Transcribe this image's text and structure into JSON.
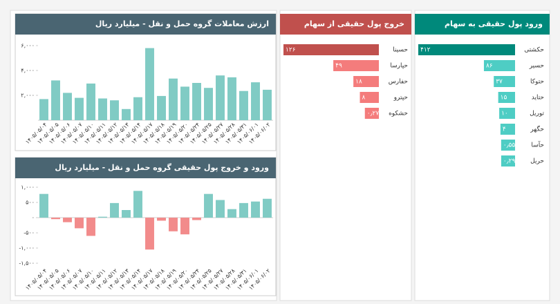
{
  "chart_data": [
    {
      "type": "hbar",
      "title": "ورود پول حقیقی به سهام",
      "categories": [
        "حکشتی",
        "حسیر",
        "حتوکا",
        "حتاید",
        "توریل",
        "حگهر",
        "حآسا",
        "حریل"
      ],
      "values": [
        412,
        86,
        37,
        15,
        10,
        4,
        0.55,
        0.29
      ],
      "value_labels": [
        "۴۱۲",
        "۸۶",
        "۳۷",
        "۱۵",
        "۱۰",
        "۴",
        "۰٫۵۵",
        "۰٫۲۹"
      ],
      "colors": [
        "#00897b",
        "#4ecdc4",
        "#4ecdc4",
        "#4ecdc4",
        "#4ecdc4",
        "#4ecdc4",
        "#4ecdc4",
        "#4ecdc4"
      ],
      "header_color": "#00897b"
    },
    {
      "type": "hbar",
      "title": "خروج پول حقیقی از سهام",
      "categories": [
        "حسینا",
        "حپارسا",
        "حفارس",
        "حپترو",
        "حشکوه"
      ],
      "values": [
        126,
        49,
        18,
        8,
        0.27
      ],
      "value_labels": [
        "۱۲۶",
        "۴۹",
        "۱۸",
        "۸",
        "۰٫۲۷"
      ],
      "colors": [
        "#c0504d",
        "#f47c7c",
        "#f47c7c",
        "#f47c7c",
        "#f47c7c"
      ],
      "header_color": "#c0504d"
    },
    {
      "type": "bar",
      "title": "ارزش معاملات گروه حمل و نقل - میلیارد ریال",
      "categories": [
        "۱۴۰۵/۰۵/۰۴",
        "۱۴۰۵/۰۵/۰۵",
        "۱۴۰۵/۰۵/۰۶",
        "۱۴۰۵/۰۵/۰۷",
        "۱۴۰۵/۰۵/۱۰",
        "۱۴۰۵/۰۵/۱۱",
        "۱۴۰۵/۰۵/۱۲",
        "۱۴۰۵/۰۵/۱۳",
        "۱۴۰۵/۰۵/۱۴",
        "۱۴۰۵/۰۵/۱۷",
        "۱۴۰۵/۰۵/۱۸",
        "۱۴۰۵/۰۵/۱۹",
        "۱۴۰۵/۰۵/۲۰",
        "۱۴۰۵/۰۵/۲۴",
        "۱۴۰۵/۰۵/۲۵",
        "۱۴۰۵/۰۵/۲۷",
        "۱۴۰۵/۰۵/۲۸",
        "۱۴۰۵/۰۵/۳۱",
        "۱۴۰۵/۰۶/۰۱",
        "۱۴۰۵/۰۶/۰۲"
      ],
      "values": [
        1700,
        3200,
        2200,
        1800,
        2950,
        1750,
        1600,
        900,
        1850,
        5800,
        1950,
        3350,
        2700,
        3000,
        2600,
        3600,
        3450,
        2350,
        3050,
        2450
      ],
      "color": "#80cbc4",
      "negative_color": "#f28b8b",
      "header_color": "#4a6572",
      "ylim": [
        0,
        6500
      ],
      "yticks": [
        {
          "value": 2000,
          "label": "۲,۰۰۰"
        },
        {
          "value": 4000,
          "label": "۴,۰۰۰"
        },
        {
          "value": 6000,
          "label": "۶,۰۰۰"
        }
      ]
    },
    {
      "type": "bar",
      "title": "ورود و خروج پول حقیقی گروه حمل و نقل - میلیارد ریال",
      "categories": [
        "۱۴۰۵/۰۵/۰۴",
        "۱۴۰۵/۰۵/۰۵",
        "۱۴۰۵/۰۵/۰۶",
        "۱۴۰۵/۰۵/۰۷",
        "۱۴۰۵/۰۵/۱۰",
        "۱۴۰۵/۰۵/۱۱",
        "۱۴۰۵/۰۵/۱۲",
        "۱۴۰۵/۰۵/۱۳",
        "۱۴۰۵/۰۵/۱۴",
        "۱۴۰۵/۰۵/۱۷",
        "۱۴۰۵/۰۵/۱۸",
        "۱۴۰۵/۰۵/۱۹",
        "۱۴۰۵/۰۵/۲۰",
        "۱۴۰۵/۰۵/۲۴",
        "۱۴۰۵/۰۵/۲۵",
        "۱۴۰۵/۰۵/۲۷",
        "۱۴۰۵/۰۵/۲۸",
        "۱۴۰۵/۰۵/۳۱",
        "۱۴۰۵/۰۶/۰۱",
        "۱۴۰۵/۰۶/۰۲"
      ],
      "values": [
        780,
        -50,
        -150,
        -350,
        -600,
        30,
        480,
        250,
        880,
        -1050,
        -100,
        -450,
        -550,
        -80,
        780,
        580,
        280,
        480,
        530,
        620
      ],
      "color": "#80cbc4",
      "negative_color": "#f28b8b",
      "header_color": "#4a6572",
      "ylim": [
        -1600,
        1100
      ],
      "yticks": [
        {
          "value": -1500,
          "label": "-۱,۵۰۰"
        },
        {
          "value": -1000,
          "label": "-۱,۰۰۰"
        },
        {
          "value": -500,
          "label": "-۵۰۰"
        },
        {
          "value": 0,
          "label": "۰"
        },
        {
          "value": 500,
          "label": "۵۰۰"
        },
        {
          "value": 1000,
          "label": "۱,۰۰۰"
        }
      ]
    }
  ]
}
